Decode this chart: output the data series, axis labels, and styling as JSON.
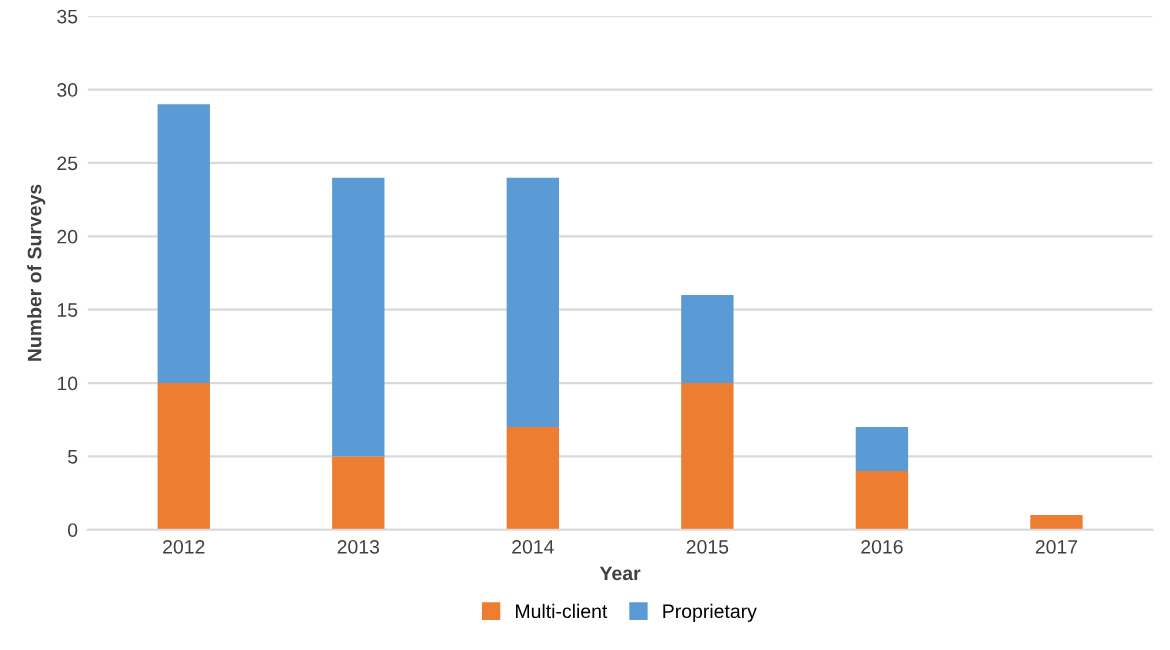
{
  "chart_data": {
    "type": "bar",
    "stacked": true,
    "xlabel": "Year",
    "ylabel": "Number of Surveys",
    "categories": [
      "2012",
      "2013",
      "2014",
      "2015",
      "2016",
      "2017"
    ],
    "series": [
      {
        "name": "Multi-client",
        "color": "#ed7d31",
        "values": [
          10,
          5,
          7,
          10,
          4,
          1
        ]
      },
      {
        "name": "Proprietary",
        "color": "#5b9bd5",
        "values": [
          19,
          19,
          17,
          6,
          3,
          0
        ]
      }
    ],
    "ylim": [
      0,
      35
    ],
    "yticks": [
      0,
      5,
      10,
      15,
      20,
      25,
      30,
      35
    ],
    "grid": "y",
    "legend": "bottom"
  }
}
